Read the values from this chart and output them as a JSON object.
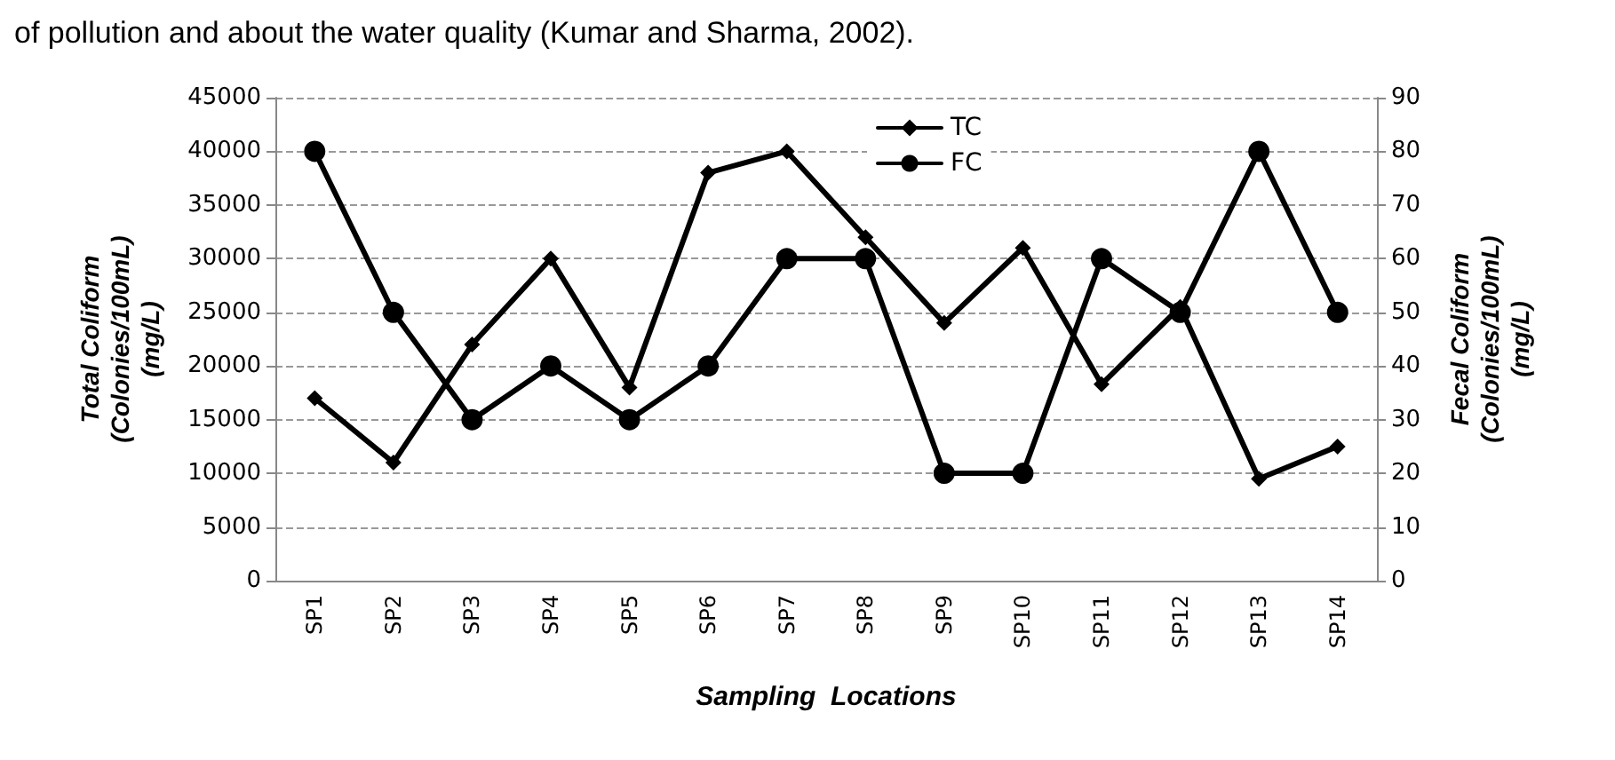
{
  "chart_data": {
    "type": "line",
    "annotations": [
      "of pollution and about the water quality (Kumar and Sharma, 2002)."
    ],
    "xlabel": "Sampling  Locations",
    "ylabel": "Total Coliform\n(Colonies/100mL)\n(mg/L)",
    "y2label": "Fecal Coliform\n(Colonies/100mL)\n(mg/L)",
    "categories": [
      "SP1",
      "SP2",
      "SP3",
      "SP4",
      "SP5",
      "SP6",
      "SP7",
      "SP8",
      "SP9",
      "SP10",
      "SP11",
      "SP12",
      "SP13",
      "SP14"
    ],
    "series": [
      {
        "name": "TC",
        "color": "#000000",
        "marker": "diamond",
        "values": [
          17000,
          11000,
          22000,
          30000,
          18000,
          38000,
          40000,
          32000,
          24000,
          31000,
          18300,
          25500,
          9500,
          12500
        ]
      },
      {
        "name": "FC",
        "color": "#000000",
        "marker": "circle",
        "axis": "y2",
        "values": [
          80,
          50,
          30,
          40,
          30,
          40,
          60,
          60,
          20,
          20,
          60,
          50,
          80,
          50
        ]
      }
    ],
    "ylim": [
      0,
      45000
    ],
    "yticks": [
      0,
      5000,
      10000,
      15000,
      20000,
      25000,
      30000,
      35000,
      40000,
      45000
    ],
    "y2lim": [
      0,
      90
    ],
    "y2ticks": [
      0,
      10,
      20,
      30,
      40,
      50,
      60,
      70,
      80,
      90
    ],
    "grid": "y",
    "legend": "top",
    "line_style": "solid"
  }
}
